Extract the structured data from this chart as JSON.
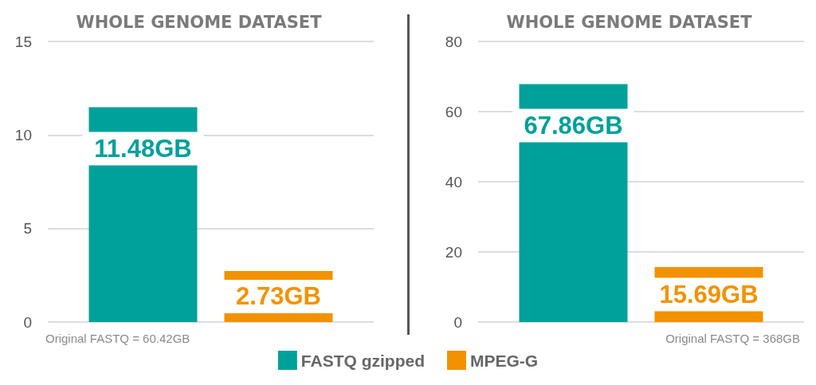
{
  "chart_data": [
    {
      "type": "bar",
      "title": "WHOLE GENOME DATASET",
      "categories": [
        null
      ],
      "series": [
        {
          "name": "FASTQ gzipped",
          "color": "#00a19a",
          "values": [
            11.48
          ],
          "value_labels": [
            "11.48GB"
          ]
        },
        {
          "name": "MPEG-G",
          "color": "#f39200",
          "values": [
            2.73
          ],
          "value_labels": [
            "2.73GB"
          ]
        }
      ],
      "ylim": [
        0,
        15
      ],
      "yticks": [
        0,
        5,
        10,
        15
      ],
      "grid": "y",
      "legend": "bottom",
      "annotations": [
        "Original FASTQ = 60.42GB"
      ]
    },
    {
      "type": "bar",
      "title": "WHOLE GENOME DATASET",
      "categories": [
        null
      ],
      "series": [
        {
          "color": "#00a19a",
          "values": [
            67.86
          ],
          "value_labels": [
            "67.86GB"
          ]
        },
        {
          "color": "#f39200",
          "values": [
            15.69
          ],
          "value_labels": [
            "15.69GB"
          ]
        }
      ],
      "ylim": [
        0,
        80
      ],
      "yticks": [
        0,
        20,
        40,
        60,
        80
      ],
      "grid": "y",
      "annotations": [
        "Original FASTQ = 368GB"
      ]
    }
  ]
}
